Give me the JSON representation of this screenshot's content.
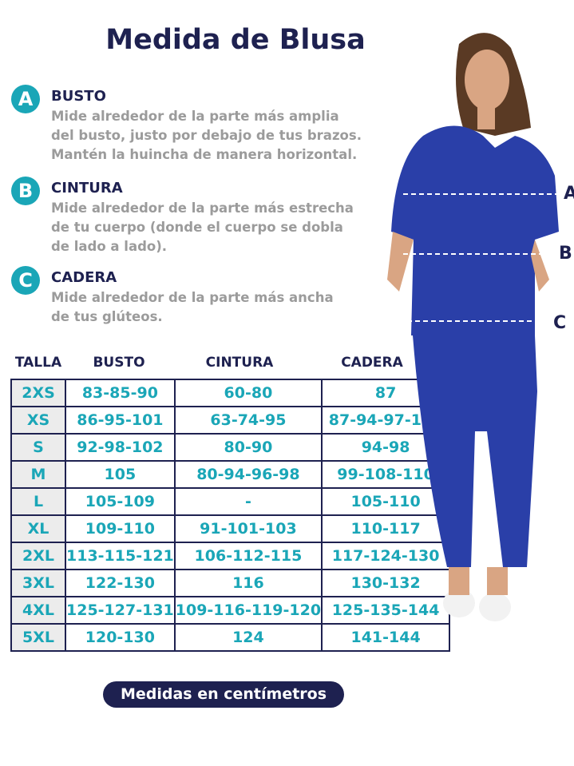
{
  "title": "Medida de Blusa",
  "sections": [
    {
      "letter": "A",
      "label": "BUSTO",
      "lines": [
        "Mide alrededor de la parte más amplia",
        "del busto, justo por debajo de tus brazos.",
        "Mantén la huincha de manera horizontal."
      ]
    },
    {
      "letter": "B",
      "label": "CINTURA",
      "lines": [
        "Mide alrededor de la parte más estrecha",
        "de tu cuerpo (donde el cuerpo se dobla",
        "de lado a lado)."
      ]
    },
    {
      "letter": "C",
      "label": "CADERA",
      "lines": [
        "Mide alrededor de la parte más ancha",
        "de tus glúteos."
      ]
    }
  ],
  "table": {
    "headers": [
      "TALLA",
      "BUSTO",
      "CINTURA",
      "CADERA"
    ],
    "rows": [
      [
        "2XS",
        "83-85-90",
        "60-80",
        "87"
      ],
      [
        "XS",
        "86-95-101",
        "63-74-95",
        "87-94-97-100"
      ],
      [
        "S",
        "92-98-102",
        "80-90",
        "94-98"
      ],
      [
        "M",
        "105",
        "80-94-96-98",
        "99-108-110"
      ],
      [
        "L",
        "105-109",
        "-",
        "105-110"
      ],
      [
        "XL",
        "109-110",
        "91-101-103",
        "110-117"
      ],
      [
        "2XL",
        "113-115-121",
        "106-112-115",
        "117-124-130"
      ],
      [
        "3XL",
        "122-130",
        "116",
        "130-132"
      ],
      [
        "4XL",
        "125-127-131",
        "109-116-119-120",
        "125-135-144"
      ],
      [
        "5XL",
        "120-130",
        "124",
        "141-144"
      ]
    ]
  },
  "markers": [
    "A",
    "B",
    "C"
  ],
  "footer_button": "Medidas en centímetros",
  "colors": {
    "navy": "#1e2150",
    "teal": "#1aa6b7",
    "gray": "#9b9b9b",
    "scrub": "#2a3fa8"
  }
}
